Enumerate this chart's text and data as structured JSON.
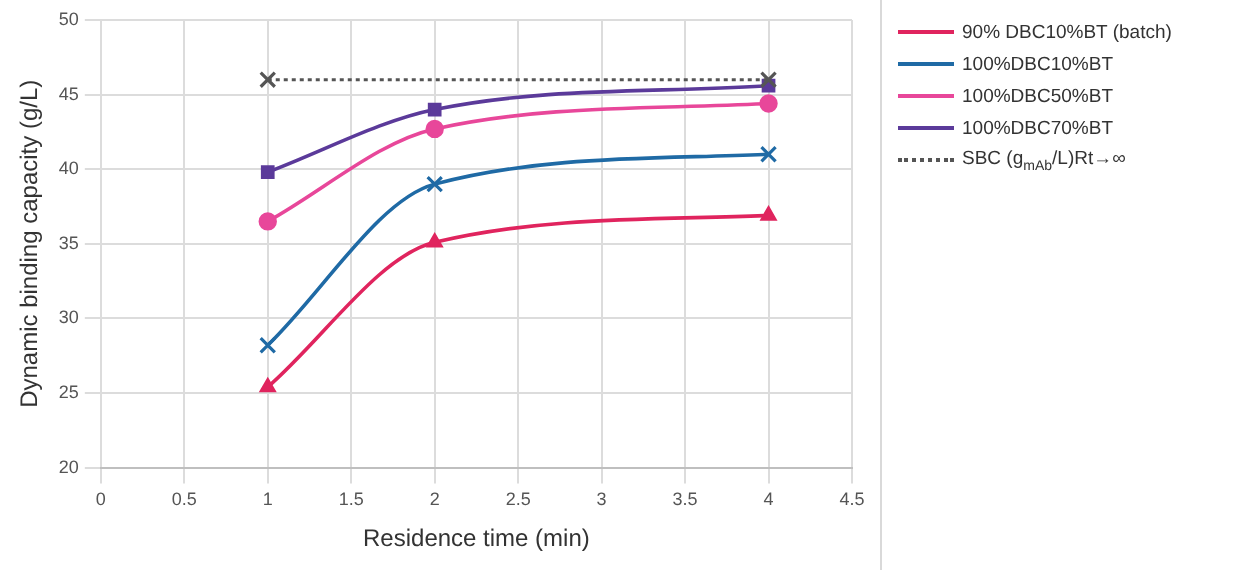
{
  "chart_data": {
    "type": "line",
    "xlabel": "Residence time (min)",
    "ylabel": "Dynamic binding capacity (g/L)",
    "xlim": [
      0,
      4.5
    ],
    "xticks": [
      0,
      0.5,
      1,
      1.5,
      2,
      2.5,
      3,
      3.5,
      4,
      4.5
    ],
    "ylim": [
      20,
      50
    ],
    "yticks": [
      20,
      25,
      30,
      35,
      40,
      45,
      50
    ],
    "grid": true,
    "legend": "right",
    "x": [
      1,
      2,
      4
    ],
    "series": [
      {
        "name": "90% DBC10%BT (batch)",
        "color": "#e0245e",
        "marker": "triangle",
        "values": [
          25.4,
          35.1,
          36.9
        ]
      },
      {
        "name": "100%DBC10%BT",
        "color": "#1f6aa5",
        "marker": "cross",
        "values": [
          28.2,
          39,
          41
        ]
      },
      {
        "name": "100%DBC50%BT",
        "color": "#e8479a",
        "marker": "circle",
        "values": [
          36.5,
          42.7,
          44.4
        ]
      },
      {
        "name": "100%DBC70%BT",
        "color": "#5b3a9a",
        "marker": "square",
        "values": [
          39.8,
          44,
          45.6
        ]
      },
      {
        "name": "SBC (g$_{mAb}$/L)Rt→∞",
        "color": "#555555",
        "marker": "cross",
        "line_style": "dotted",
        "x": [
          1,
          4
        ],
        "values": [
          46,
          46
        ]
      }
    ]
  }
}
